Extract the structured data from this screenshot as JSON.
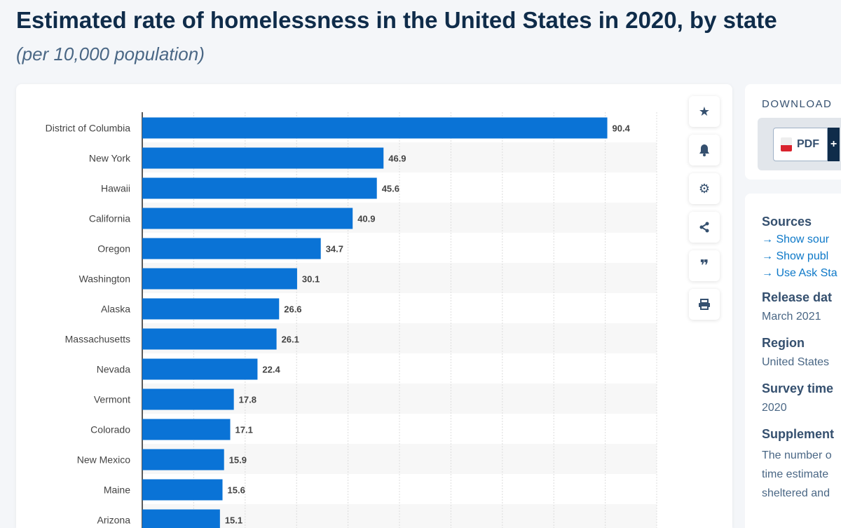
{
  "header": {
    "title": "Estimated rate of homelessness in the United States in 2020, by state",
    "subtitle": "(per 10,000 population)"
  },
  "chart_data": {
    "type": "bar",
    "orientation": "horizontal",
    "categories": [
      "District of Columbia",
      "New York",
      "Hawaii",
      "California",
      "Oregon",
      "Washington",
      "Alaska",
      "Massachusetts",
      "Nevada",
      "Vermont",
      "Colorado",
      "New Mexico",
      "Maine",
      "Arizona"
    ],
    "values": [
      90.4,
      46.9,
      45.6,
      40.9,
      34.7,
      30.1,
      26.6,
      26.1,
      22.4,
      17.8,
      17.1,
      15.9,
      15.6,
      15.1
    ],
    "labels": [
      "90.4",
      "46.9",
      "45.6",
      "40.9",
      "34.7",
      "30.1",
      "26.6",
      "26.1",
      "22.4",
      "17.8",
      "17.1",
      "15.9",
      "15.6",
      "15.1"
    ],
    "xlim": [
      0,
      100
    ],
    "grid": true,
    "bar_color": "#0a73d6"
  },
  "toolbar": {
    "icons": [
      "star-icon",
      "bell-icon",
      "gear-icon",
      "share-icon",
      "quote-icon",
      "print-icon"
    ]
  },
  "download": {
    "title": "DOWNLOAD",
    "pdf_label": "PDF",
    "plus": "+"
  },
  "info": {
    "sources_title": "Sources",
    "links": [
      "Show sour",
      "Show publ",
      "Use Ask Sta"
    ],
    "release_title": "Release dat",
    "release": "March 2021",
    "region_title": "Region",
    "region": "United States",
    "survey_title": "Survey time",
    "survey": "2020",
    "supp_title": "Supplement",
    "supp_lines": [
      "The number o",
      "time estimate",
      "sheltered and"
    ]
  }
}
